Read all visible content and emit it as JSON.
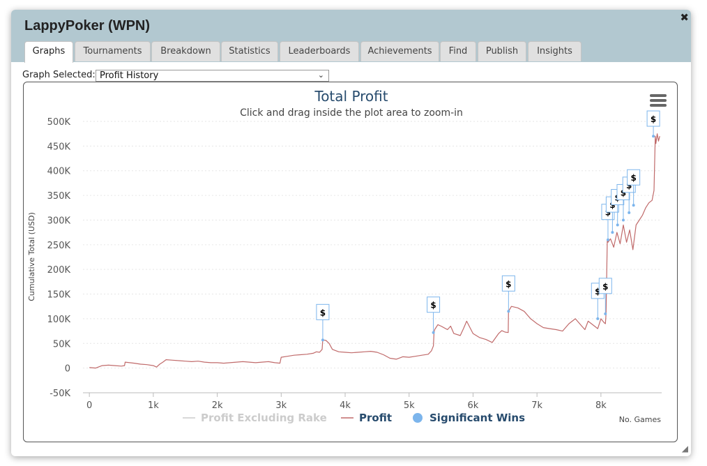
{
  "window": {
    "title": "LappyPoker (WPN)",
    "close_glyph": "✖",
    "resize_glyph": "◢"
  },
  "tabs": [
    {
      "label": "Graphs",
      "active": true
    },
    {
      "label": "Tournaments"
    },
    {
      "label": "Breakdown"
    },
    {
      "label": "Statistics"
    },
    {
      "label": "Leaderboards"
    },
    {
      "label": "Achievements"
    },
    {
      "label": "Find"
    },
    {
      "label": "Publish"
    },
    {
      "label": "Insights"
    }
  ],
  "graph_select": {
    "label": "Graph Selected:",
    "value": "Profit History"
  },
  "chart_menu": {
    "icon": "hamburger-menu-icon"
  },
  "chart_data": {
    "type": "line",
    "title": "Total Profit",
    "subtitle": "Click and drag inside the plot area to zoom-in",
    "xlabel": "No. Games",
    "ylabel": "Cumulative Total (USD)",
    "xlim": [
      -100,
      8950
    ],
    "ylim": [
      -50000,
      500000
    ],
    "x_ticks": [
      0,
      1000,
      2000,
      3000,
      4000,
      5000,
      6000,
      7000,
      8000
    ],
    "x_tick_labels": [
      "0",
      "1k",
      "2k",
      "3k",
      "4k",
      "5k",
      "6k",
      "7k",
      "8k"
    ],
    "y_ticks": [
      -50000,
      0,
      50000,
      100000,
      150000,
      200000,
      250000,
      300000,
      350000,
      400000,
      450000,
      500000
    ],
    "y_tick_labels": [
      "-50K",
      "0",
      "50K",
      "100K",
      "150K",
      "200K",
      "250K",
      "300K",
      "350K",
      "400K",
      "450K",
      "500K"
    ],
    "grid": true,
    "legend_position": "bottom",
    "series": [
      {
        "name": "Profit Excluding Rake",
        "color": "#cccccc",
        "visible": false,
        "values": []
      },
      {
        "name": "Profit",
        "color": "#c06a6a",
        "x": [
          0,
          100,
          200,
          300,
          400,
          500,
          550,
          560,
          700,
          800,
          900,
          1000,
          1050,
          1100,
          1150,
          1200,
          1300,
          1400,
          1500,
          1600,
          1700,
          1800,
          1900,
          2000,
          2100,
          2200,
          2300,
          2400,
          2500,
          2600,
          2700,
          2800,
          2900,
          2980,
          3000,
          3100,
          3200,
          3300,
          3400,
          3500,
          3550,
          3600,
          3640,
          3650,
          3700,
          3750,
          3800,
          3900,
          4000,
          4100,
          4200,
          4300,
          4400,
          4500,
          4600,
          4700,
          4800,
          4900,
          5000,
          5100,
          5200,
          5300,
          5350,
          5380,
          5390,
          5400,
          5450,
          5500,
          5600,
          5650,
          5700,
          5800,
          5850,
          5900,
          6000,
          6100,
          6200,
          6300,
          6400,
          6450,
          6500,
          6550,
          6555,
          6600,
          6700,
          6800,
          6900,
          7000,
          7100,
          7200,
          7300,
          7400,
          7500,
          7600,
          7700,
          7750,
          7800,
          7900,
          7950,
          8000,
          8050,
          8070,
          8080,
          8100,
          8110,
          8150,
          8200,
          8250,
          8300,
          8350,
          8400,
          8450,
          8500,
          8550,
          8600,
          8650,
          8700,
          8750,
          8800,
          8830,
          8850,
          8860,
          8880,
          8900,
          8920
        ],
        "values": [
          1000,
          0,
          5000,
          6000,
          5000,
          4000,
          5000,
          12000,
          10000,
          8000,
          7000,
          5000,
          2000,
          8000,
          12000,
          17000,
          16000,
          15000,
          14000,
          13000,
          14000,
          12000,
          11000,
          11000,
          10000,
          11000,
          12000,
          13000,
          12000,
          11000,
          12000,
          13000,
          11000,
          10000,
          22000,
          24000,
          26000,
          27000,
          28000,
          30000,
          33000,
          32000,
          38000,
          57000,
          56000,
          50000,
          38000,
          33000,
          32000,
          31000,
          32000,
          33000,
          34000,
          32000,
          27000,
          20000,
          18000,
          23000,
          22000,
          24000,
          26000,
          28000,
          35000,
          45000,
          72000,
          78000,
          88000,
          85000,
          78000,
          85000,
          70000,
          66000,
          80000,
          95000,
          70000,
          62000,
          58000,
          52000,
          70000,
          76000,
          73000,
          72000,
          115000,
          125000,
          122000,
          115000,
          100000,
          90000,
          82000,
          80000,
          78000,
          75000,
          90000,
          100000,
          85000,
          78000,
          95000,
          85000,
          80000,
          100000,
          92000,
          90000,
          110000,
          260000,
          255000,
          262000,
          245000,
          275000,
          252000,
          290000,
          255000,
          280000,
          240000,
          290000,
          300000,
          310000,
          325000,
          335000,
          340000,
          360000,
          470000,
          455000,
          475000,
          460000,
          470000
        ]
      }
    ],
    "significant_wins": {
      "name": "Significant Wins",
      "color": "#7cb5ec",
      "marker_label": "$",
      "points": [
        [
          3650,
          57000
        ],
        [
          5380,
          72000
        ],
        [
          6555,
          115000
        ],
        [
          7950,
          100000
        ],
        [
          8070,
          110000
        ],
        [
          8110,
          260000
        ],
        [
          8180,
          275000
        ],
        [
          8260,
          290000
        ],
        [
          8350,
          300000
        ],
        [
          8440,
          315000
        ],
        [
          8510,
          330000
        ],
        [
          8820,
          470000
        ]
      ]
    }
  }
}
